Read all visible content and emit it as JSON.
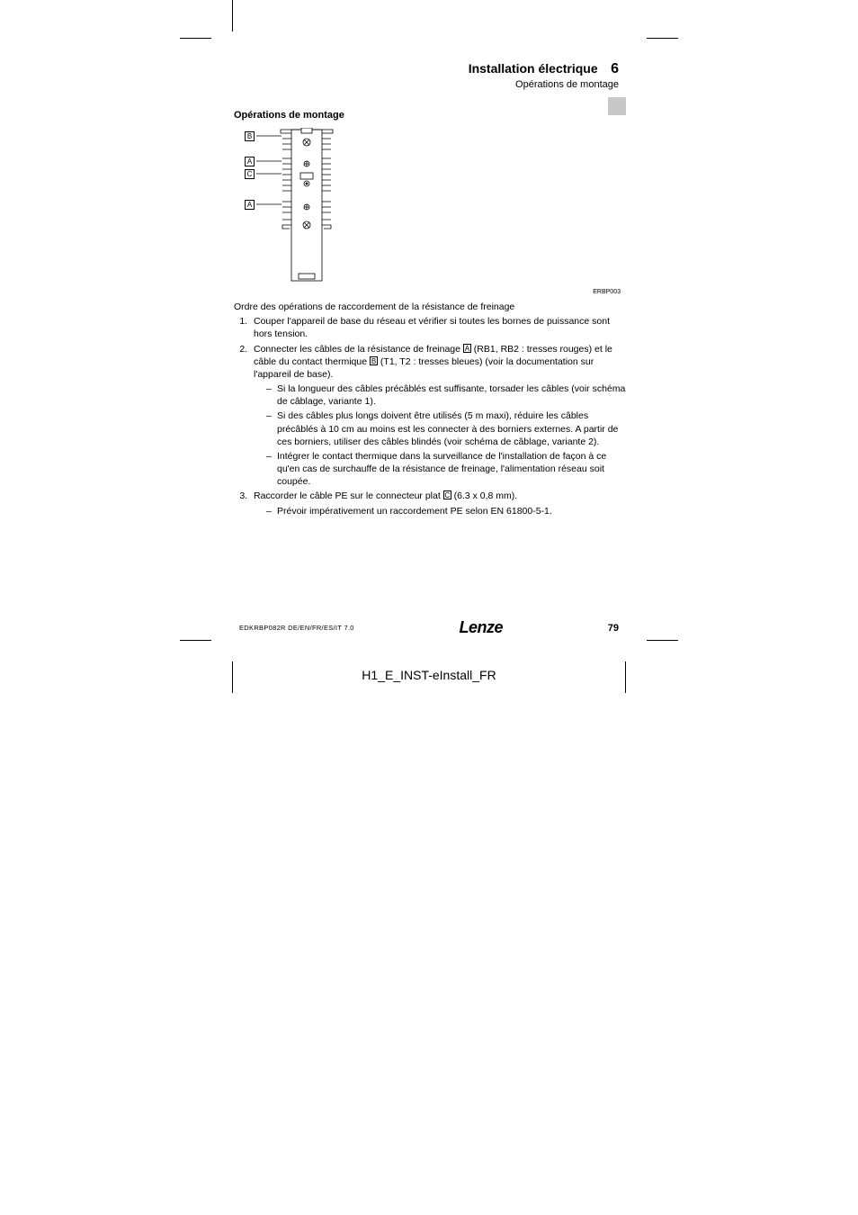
{
  "header": {
    "title": "Installation électrique",
    "chapter_number": "6",
    "subtitle": "Opérations de montage"
  },
  "section_title": "Opérations de montage",
  "diagram": {
    "code": "ERBP003",
    "labels": {
      "B": "B",
      "A1": "A",
      "C": "C",
      "A2": "A"
    },
    "colors": {
      "line": "#000000",
      "background": "#ffffff"
    }
  },
  "intro_line": "Ordre des opérations de raccordement de la résistance de freinage",
  "steps": [
    {
      "text": "Couper l'appareil de base du réseau et vérifier si toutes les bornes de puissance sont hors tension."
    },
    {
      "text_parts": [
        "Connecter les câbles de la résistance de freinage ",
        {
          "ref": "A"
        },
        " (RB1, RB2 : tresses rouges) et le câble du contact thermique ",
        {
          "ref": "B"
        },
        " (T1, T2 : tresses bleues) (voir la documentation sur l'appareil de base)."
      ],
      "subs": [
        "Si la longueur des câbles précâblés est suffisante, torsader les câbles (voir schéma de câblage, variante 1).",
        "Si des câbles plus longs doivent être utilisés (5 m maxi), réduire les câbles précâblés à 10 cm au moins est les connecter à des borniers externes. A partir de ces borniers, utiliser des câbles blindés (voir schéma de câblage, variante 2).",
        "Intégrer le contact thermique dans la surveillance de l'installation de façon à ce qu'en cas de surchauffe de la résistance de freinage, l'alimentation réseau soit coupée."
      ]
    },
    {
      "text_parts": [
        "Raccorder le câble PE sur le connecteur plat ",
        {
          "ref": "C"
        },
        " (6.3 x 0,8 mm)."
      ],
      "subs": [
        "Prévoir impérativement un raccordement PE selon EN 61800-5-1."
      ]
    }
  ],
  "footer": {
    "doc_id": "EDKRBP082R   DE/EN/FR/ES/IT   7.0",
    "logo": "Lenze",
    "page_number": "79"
  },
  "bottom_label": "H1_E_INST-eInstall_FR",
  "colors": {
    "text": "#000000",
    "gray_tab": "#c8c8c8",
    "background": "#ffffff"
  },
  "fonts": {
    "body_size_pt": 10.5,
    "header_title_pt": 14,
    "footer_small_pt": 7.5
  }
}
